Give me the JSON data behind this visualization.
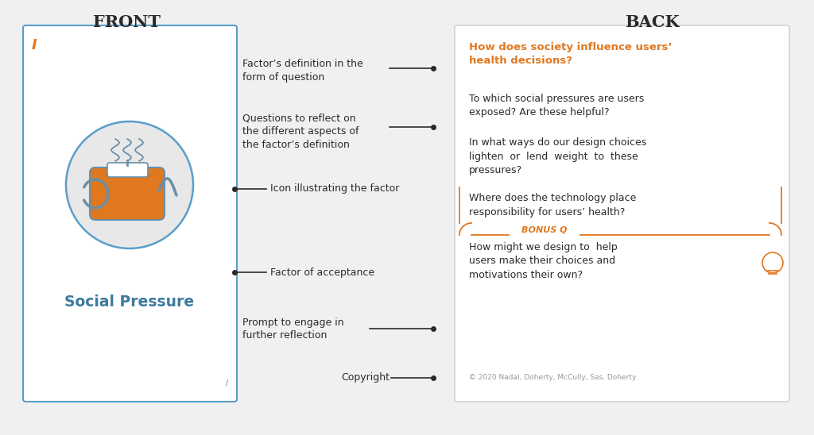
{
  "bg_color": "#f0f0f0",
  "front_title": "FRONT",
  "back_title": "BACK",
  "title_fontsize": 15,
  "card_front_border_color": "#5a9ec9",
  "orange_color": "#e07820",
  "blue_color": "#3d7a9e",
  "dark_gray": "#2a2a2a",
  "mid_gray": "#555555",
  "light_gray": "#999999",
  "circle_fill": "#e8e8e8",
  "circle_border": "#5a9ec9",
  "social_pressure_color": "#3d7a9e",
  "back_heading": "How does society influence users’\nhealth decisions?",
  "back_q1": "To which social pressures are users\nexposed? Are these helpful?",
  "back_q2": "In what ways do our design choices\nlighten  or  lend  weight  to  these\npressures?",
  "back_q3": "Where does the technology place\nresponsibility for users’ health?",
  "bonus_label": "BONUS Q",
  "back_bonus": "How might we design to  help\nusers make their choices and\nmotivations their own?",
  "copyright_text": "© 2020 Nadal, Doherty, McCully, Sas, Doherty",
  "front_icon_marker": "I",
  "ann_label1": "Factor’s definition in the\nform of question",
  "ann_label2": "Questions to reflect on\nthe different aspects of\nthe factor’s definition",
  "ann_label3": "Icon illustrating the factor",
  "ann_label4": "Factor of acceptance",
  "ann_label5": "Prompt to engage in\nfurther reflection",
  "ann_label6": "Copyright"
}
